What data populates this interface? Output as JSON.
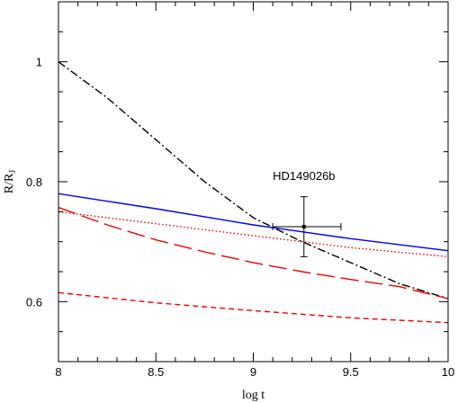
{
  "chart_data": {
    "type": "line",
    "title": "",
    "xlabel": "log t",
    "ylabel_main": "R/R",
    "ylabel_sub": "J",
    "xlim": [
      8,
      10
    ],
    "ylim": [
      0.5,
      1.1
    ],
    "x_ticks": [
      8,
      8.5,
      9,
      9.5,
      10
    ],
    "x_tick_labels": [
      "8",
      "8.5",
      "9",
      "9.5",
      "10"
    ],
    "y_ticks": [
      0.6,
      0.8,
      1.0
    ],
    "y_tick_labels": [
      "0.6",
      "0.8",
      "1"
    ],
    "x_minor_step": 0.1,
    "y_minor_step": 0.05,
    "grid": false,
    "series": [
      {
        "style": "dash-dot",
        "color": "#000000",
        "x": [
          8.0,
          8.25,
          8.5,
          8.75,
          9.0,
          9.25,
          9.5,
          9.75,
          10.0
        ],
        "y": [
          1.0,
          0.94,
          0.87,
          0.8,
          0.74,
          0.7,
          0.665,
          0.63,
          0.605
        ]
      },
      {
        "style": "solid",
        "color": "#0000ee",
        "x": [
          8.0,
          8.5,
          9.0,
          9.5,
          10.0
        ],
        "y": [
          0.78,
          0.755,
          0.728,
          0.705,
          0.685
        ]
      },
      {
        "style": "dotted",
        "color": "#ee0000",
        "x": [
          8.0,
          8.5,
          9.0,
          9.5,
          10.0
        ],
        "y": [
          0.75,
          0.73,
          0.71,
          0.69,
          0.675
        ]
      },
      {
        "style": "long-dash",
        "color": "#ee0000",
        "x": [
          8.0,
          8.25,
          8.5,
          8.75,
          9.0,
          9.25,
          9.5,
          9.75,
          10.0
        ],
        "y": [
          0.757,
          0.728,
          0.703,
          0.683,
          0.665,
          0.65,
          0.637,
          0.625,
          0.605
        ]
      },
      {
        "style": "short-dash",
        "color": "#ee0000",
        "x": [
          8.0,
          8.5,
          9.0,
          9.5,
          10.0
        ],
        "y": [
          0.615,
          0.598,
          0.585,
          0.573,
          0.565
        ]
      }
    ],
    "errorbar_point": {
      "label": "HD149026b",
      "x": 9.26,
      "y": 0.725,
      "x_err": [
        9.1,
        9.45
      ],
      "y_err": [
        0.675,
        0.775
      ]
    }
  }
}
